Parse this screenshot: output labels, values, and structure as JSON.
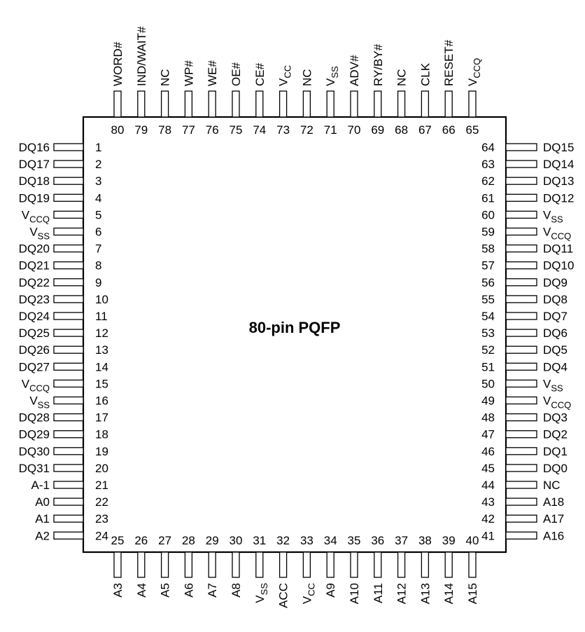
{
  "chip_label": "80-pin PQFP",
  "pins": {
    "left": [
      {
        "num": "1",
        "name": "DQ16"
      },
      {
        "num": "2",
        "name": "DQ17"
      },
      {
        "num": "3",
        "name": "DQ18"
      },
      {
        "num": "4",
        "name": "DQ19"
      },
      {
        "num": "5",
        "name": "V",
        "sub": "CCQ"
      },
      {
        "num": "6",
        "name": "V",
        "sub": "SS"
      },
      {
        "num": "7",
        "name": "DQ20"
      },
      {
        "num": "8",
        "name": "DQ21"
      },
      {
        "num": "9",
        "name": "DQ22"
      },
      {
        "num": "10",
        "name": "DQ23"
      },
      {
        "num": "11",
        "name": "DQ24"
      },
      {
        "num": "12",
        "name": "DQ25"
      },
      {
        "num": "13",
        "name": "DQ26"
      },
      {
        "num": "14",
        "name": "DQ27"
      },
      {
        "num": "15",
        "name": "V",
        "sub": "CCQ"
      },
      {
        "num": "16",
        "name": "V",
        "sub": "SS"
      },
      {
        "num": "17",
        "name": "DQ28"
      },
      {
        "num": "18",
        "name": "DQ29"
      },
      {
        "num": "19",
        "name": "DQ30"
      },
      {
        "num": "20",
        "name": "DQ31"
      },
      {
        "num": "21",
        "name": "A-1"
      },
      {
        "num": "22",
        "name": "A0"
      },
      {
        "num": "23",
        "name": "A1"
      },
      {
        "num": "24",
        "name": "A2"
      }
    ],
    "right": [
      {
        "num": "64",
        "name": "DQ15"
      },
      {
        "num": "63",
        "name": "DQ14"
      },
      {
        "num": "62",
        "name": "DQ13"
      },
      {
        "num": "61",
        "name": "DQ12"
      },
      {
        "num": "60",
        "name": "V",
        "sub": "SS"
      },
      {
        "num": "59",
        "name": "V",
        "sub": "CCQ"
      },
      {
        "num": "58",
        "name": "DQ11"
      },
      {
        "num": "57",
        "name": "DQ10"
      },
      {
        "num": "56",
        "name": "DQ9"
      },
      {
        "num": "55",
        "name": "DQ8"
      },
      {
        "num": "54",
        "name": "DQ7"
      },
      {
        "num": "53",
        "name": "DQ6"
      },
      {
        "num": "52",
        "name": "DQ5"
      },
      {
        "num": "51",
        "name": "DQ4"
      },
      {
        "num": "50",
        "name": "V",
        "sub": "SS"
      },
      {
        "num": "49",
        "name": "V",
        "sub": "CCQ"
      },
      {
        "num": "48",
        "name": "DQ3"
      },
      {
        "num": "47",
        "name": "DQ2"
      },
      {
        "num": "46",
        "name": "DQ1"
      },
      {
        "num": "45",
        "name": "DQ0"
      },
      {
        "num": "44",
        "name": "NC"
      },
      {
        "num": "43",
        "name": "A18"
      },
      {
        "num": "42",
        "name": "A17"
      },
      {
        "num": "41",
        "name": "A16"
      }
    ],
    "top": [
      {
        "num": "80",
        "name": "WORD#"
      },
      {
        "num": "79",
        "name": "IND/WAIT#"
      },
      {
        "num": "78",
        "name": "NC"
      },
      {
        "num": "77",
        "name": "WP#"
      },
      {
        "num": "76",
        "name": "WE#"
      },
      {
        "num": "75",
        "name": "OE#"
      },
      {
        "num": "74",
        "name": "CE#"
      },
      {
        "num": "73",
        "name": "V",
        "sub": "CC"
      },
      {
        "num": "72",
        "name": "NC"
      },
      {
        "num": "71",
        "name": "V",
        "sub": "SS"
      },
      {
        "num": "70",
        "name": "ADV#"
      },
      {
        "num": "69",
        "name": "RY/BY#"
      },
      {
        "num": "68",
        "name": "NC"
      },
      {
        "num": "67",
        "name": "CLK"
      },
      {
        "num": "66",
        "name": "RESET#"
      },
      {
        "num": "65",
        "name": "V",
        "sub": "CCQ"
      }
    ],
    "bottom": [
      {
        "num": "25",
        "name": "A3"
      },
      {
        "num": "26",
        "name": "A4"
      },
      {
        "num": "27",
        "name": "A5"
      },
      {
        "num": "28",
        "name": "A6"
      },
      {
        "num": "29",
        "name": "A7"
      },
      {
        "num": "30",
        "name": "A8"
      },
      {
        "num": "31",
        "name": "V",
        "sub": "SS"
      },
      {
        "num": "32",
        "name": "ACC"
      },
      {
        "num": "33",
        "name": "V",
        "sub": "CC"
      },
      {
        "num": "34",
        "name": "A9"
      },
      {
        "num": "35",
        "name": "A10"
      },
      {
        "num": "36",
        "name": "A11"
      },
      {
        "num": "37",
        "name": "A12"
      },
      {
        "num": "38",
        "name": "A13"
      },
      {
        "num": "39",
        "name": "A14"
      },
      {
        "num": "40",
        "name": "A15"
      }
    ]
  }
}
